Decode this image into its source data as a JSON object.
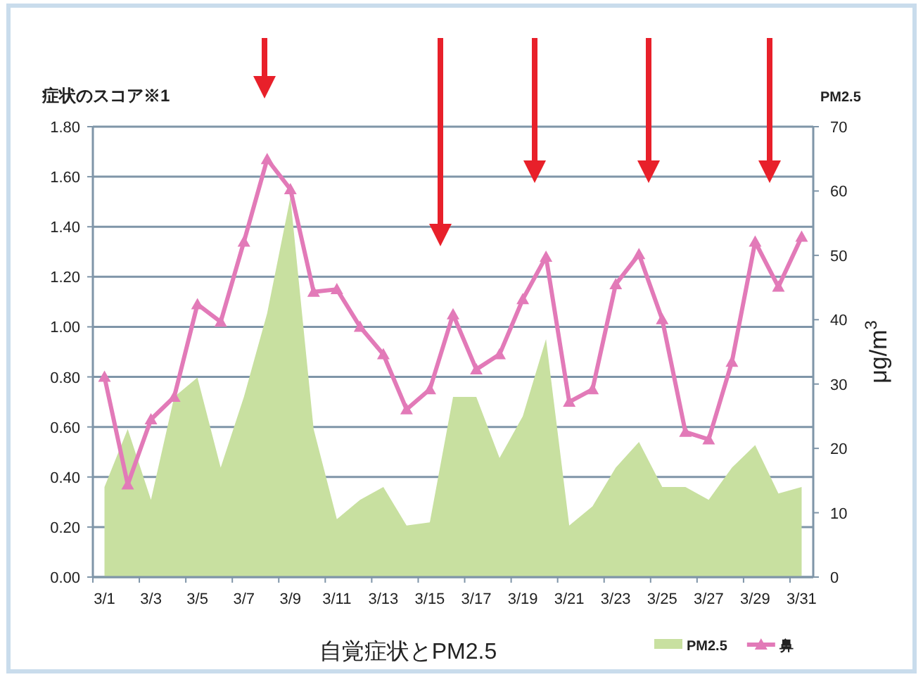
{
  "chart_data": {
    "type": "line",
    "title": "自覚症状とPM2.5",
    "ylabel": "症状のスコア※1",
    "y2label": "PM2.5",
    "annotations": [
      "μg/m$^{3}$"
    ],
    "categories": [
      "3/1",
      null,
      "3/3",
      null,
      "3/5",
      null,
      "3/7",
      null,
      "3/9",
      null,
      "3/11",
      null,
      "3/13",
      null,
      "3/15",
      null,
      "3/17",
      null,
      "3/19",
      null,
      "3/21",
      null,
      "3/23",
      null,
      "3/25",
      null,
      "3/27",
      null,
      "3/29",
      null,
      "3/31"
    ],
    "series": [
      {
        "name": "PM2.5",
        "type": "area",
        "axis": "y2",
        "color": "#c8e0a0",
        "values": [
          14,
          23,
          12,
          28,
          31,
          17,
          28,
          41,
          59,
          23,
          9,
          12,
          14,
          8,
          8.5,
          28,
          28,
          18.5,
          25,
          37,
          8,
          11,
          17,
          21,
          14,
          14,
          12,
          17,
          20.5,
          13,
          14
        ]
      },
      {
        "name": "鼻",
        "axis": "y",
        "color": "#e27ab8",
        "marker": "triangle",
        "values": [
          0.8,
          0.37,
          0.63,
          0.72,
          1.09,
          1.02,
          1.34,
          1.67,
          1.55,
          1.14,
          1.15,
          1.0,
          0.89,
          0.67,
          0.75,
          1.05,
          0.83,
          0.89,
          1.11,
          1.28,
          0.7,
          0.75,
          1.17,
          1.29,
          1.03,
          0.58,
          0.55,
          0.86,
          1.34,
          1.16,
          1.36
        ]
      }
    ],
    "ylim": [
      0,
      1.8
    ],
    "yticks": [
      {
        "value": 0,
        "label": "0.00"
      },
      {
        "value": 0.2,
        "label": "0.20"
      },
      {
        "value": 0.4,
        "label": "0.40"
      },
      {
        "value": 0.6,
        "label": "0.60"
      },
      {
        "value": 0.8,
        "label": "0.80"
      },
      {
        "value": 1.0,
        "label": "1.00"
      },
      {
        "value": 1.2,
        "label": "1.20"
      },
      {
        "value": 1.4,
        "label": "1.40"
      },
      {
        "value": 1.6,
        "label": "1.60"
      },
      {
        "value": 1.8,
        "label": "1.80"
      }
    ],
    "y2lim": [
      0,
      70
    ],
    "y2ticks": [
      0,
      10,
      20,
      30,
      40,
      50,
      60,
      70
    ],
    "grid": "y",
    "legend": "bottom right"
  }
}
